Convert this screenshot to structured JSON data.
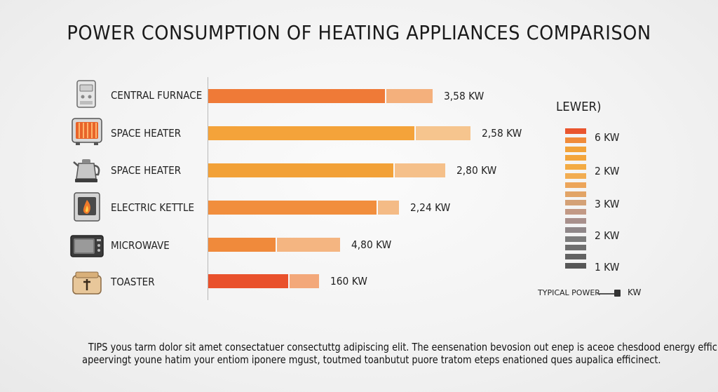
{
  "chart_data": {
    "type": "bar",
    "orientation": "horizontal",
    "title": "POWER CONSUMPTION OF HEATING APPLIANCES COMPARISON",
    "categories": [
      "CENTRAL FURNACE",
      "SPACE HEATER",
      "SPACE HEATER",
      "ELECTRIC KETTLE",
      "MICROWAVE",
      "TOASTER"
    ],
    "series": [
      {
        "name": "typical",
        "values": [
          2.1,
          2.45,
          2.2,
          2.0,
          0.8,
          0.95
        ]
      },
      {
        "name": "range",
        "values": [
          0.55,
          0.65,
          0.6,
          0.25,
          0.75,
          0.35
        ]
      }
    ],
    "value_labels": [
      "3,58 KW",
      "2,58 KW",
      "2,80 KW",
      "2,24 KW",
      "4,80 KW",
      "160 KW"
    ],
    "xlim": [
      0,
      3.5
    ],
    "colors": {
      "main": [
        "#ef7a37",
        "#f4a33a",
        "#f2a137",
        "#f18e3d",
        "#f08a3b",
        "#e9512c"
      ],
      "ext": [
        "#f4b07c",
        "#f6c58e",
        "#f5c08a",
        "#f4bb86",
        "#f4b581",
        "#f3a87a"
      ]
    },
    "legend": {
      "title": "LEWER)",
      "labels": [
        "6 KW",
        "2 KW",
        "3 KW",
        "2 KW",
        "1 KW"
      ],
      "swatches": [
        "#e9552e",
        "#f08b3a",
        "#f2a33a",
        "#f3a53c",
        "#f3ab44",
        "#f2ad52",
        "#eca55a",
        "#e2a466",
        "#d4a176",
        "#c29985",
        "#a8908c",
        "#8f8789",
        "#7c7c7c",
        "#6e6e6e",
        "#626262",
        "#575757"
      ],
      "typical_label": "TYPICAL POWER",
      "typical_unit": "KW"
    },
    "icons": [
      "furnace-icon",
      "space-heater-icon",
      "kettle-icon",
      "fireplace-heater-icon",
      "microwave-icon",
      "toaster-icon"
    ]
  },
  "tips": {
    "line1": "TIPS yous tarm dolor sit amet consectatuer consectuttg adipiscing elit. The eensenation bevosion out enep is aceoe chesdood energy efficiency",
    "line2": "apeervingt youne hatim your entiom iponere mgust, toutmed toanbutut puore tratom eteps enationed ques aupalica efficinect."
  }
}
